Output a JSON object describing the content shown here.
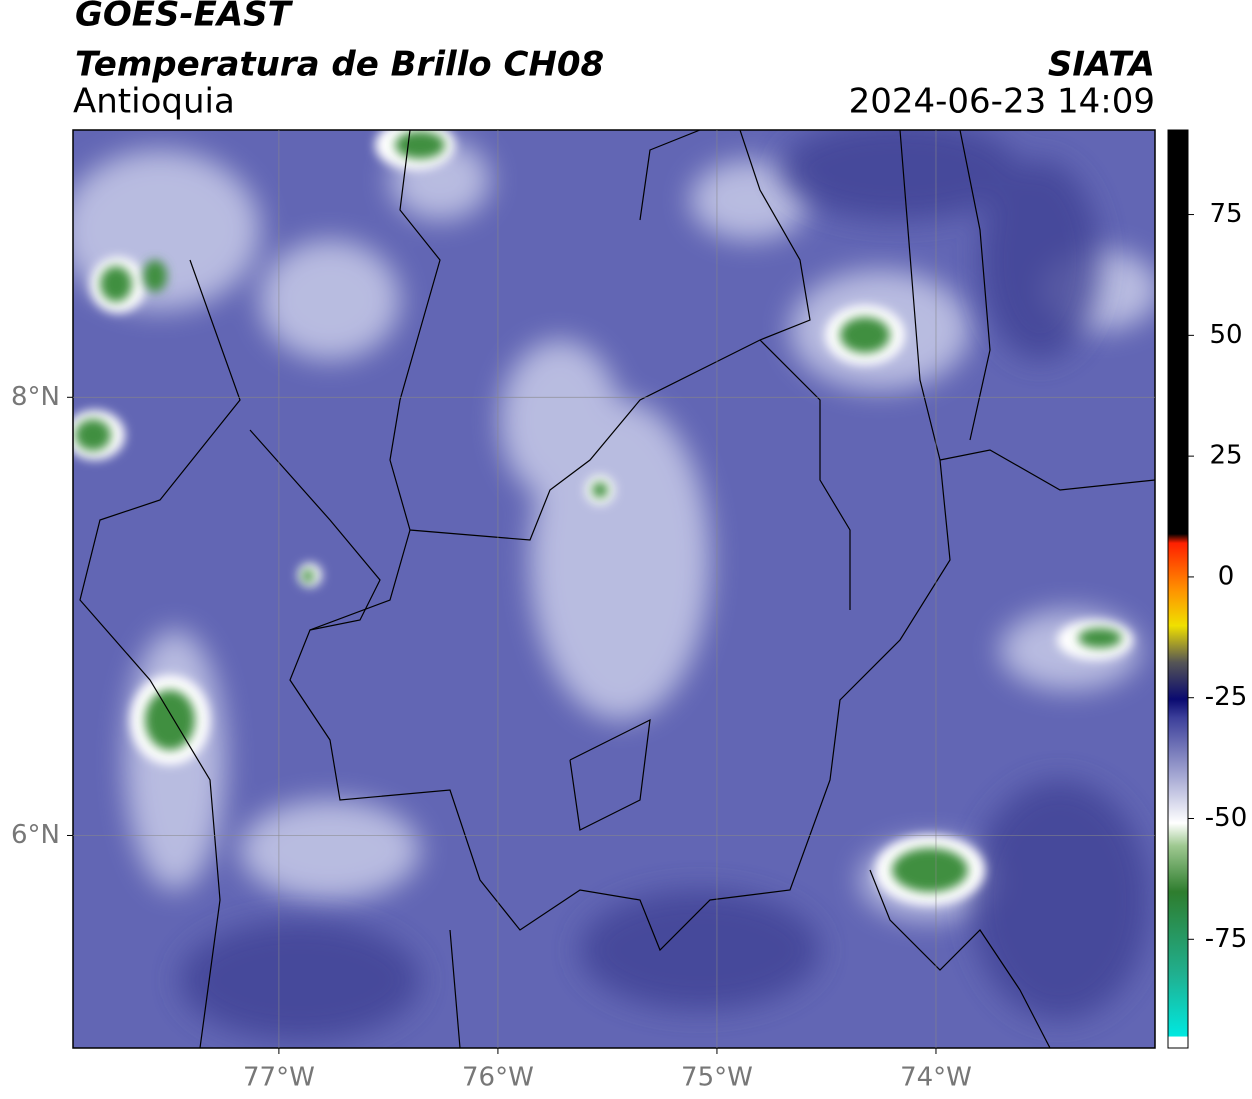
{
  "header": {
    "title": "GOES-EAST",
    "subtitle": "Temperatura de Brillo CH08",
    "region": "Antioquia",
    "source": "SIATA",
    "datetime": "2024-06-23 14:09"
  },
  "map": {
    "xlim": [
      -77.94,
      -73.0
    ],
    "ylim": [
      5.03,
      9.22
    ],
    "xticks": [
      {
        "value": -77,
        "label": "77°W"
      },
      {
        "value": -76,
        "label": "76°W"
      },
      {
        "value": -75,
        "label": "75°W"
      },
      {
        "value": -74,
        "label": "74°W"
      }
    ],
    "yticks": [
      {
        "value": 8,
        "label": "8°N"
      },
      {
        "value": 6,
        "label": "6°N"
      }
    ],
    "grid": true
  },
  "colorbar": {
    "lim": [
      -97.5,
      92.5
    ],
    "ticks": [
      75,
      50,
      25,
      0,
      -25,
      -50,
      -75
    ]
  }
}
